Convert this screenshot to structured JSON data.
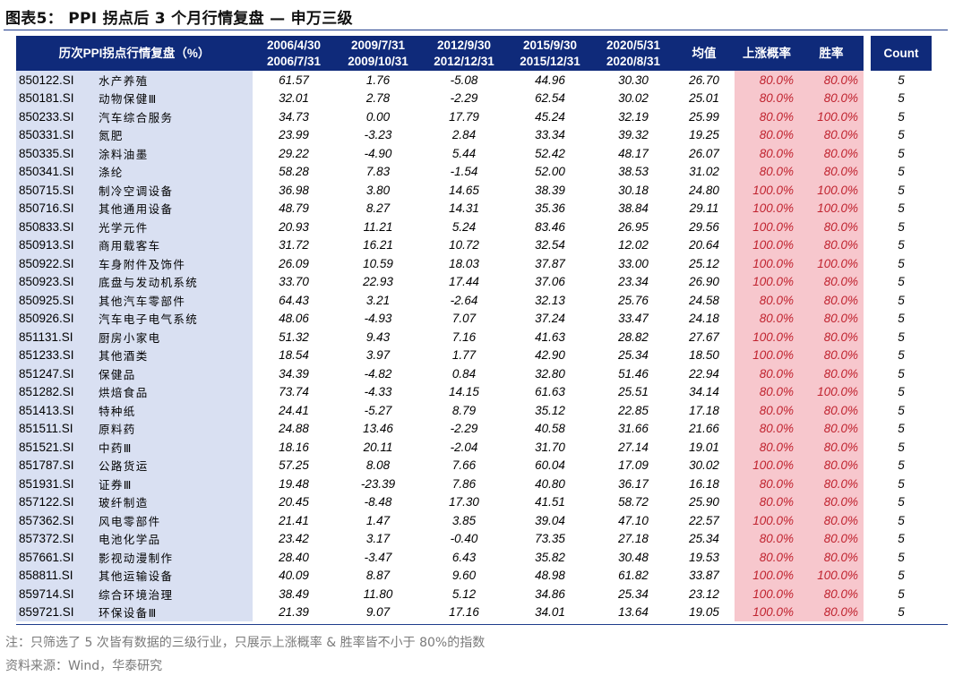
{
  "title": "图表5： PPI 拐点后 3 个月行情复盘 — 申万三级",
  "header": {
    "label": "历次PPI拐点行情复盘（%）",
    "periods": [
      [
        "2006/4/30",
        "2006/7/31"
      ],
      [
        "2009/7/31",
        "2009/10/31"
      ],
      [
        "2012/9/30",
        "2012/12/31"
      ],
      [
        "2015/9/30",
        "2015/12/31"
      ],
      [
        "2020/5/31",
        "2020/8/31"
      ]
    ],
    "avg": "均值",
    "up_prob": "上涨概率",
    "win_rate": "胜率",
    "count": "Count"
  },
  "rows": [
    {
      "code": "850122.SI",
      "name": "水产养殖",
      "v": [
        "61.57",
        "1.76",
        "-5.08",
        "44.96",
        "30.30"
      ],
      "avg": "26.70",
      "up": "80.0%",
      "win": "80.0%",
      "count": "5"
    },
    {
      "code": "850181.SI",
      "name": "动物保健Ⅲ",
      "v": [
        "32.01",
        "2.78",
        "-2.29",
        "62.54",
        "30.02"
      ],
      "avg": "25.01",
      "up": "80.0%",
      "win": "80.0%",
      "count": "5"
    },
    {
      "code": "850233.SI",
      "name": "汽车综合服务",
      "v": [
        "34.73",
        "0.00",
        "17.79",
        "45.24",
        "32.19"
      ],
      "avg": "25.99",
      "up": "80.0%",
      "win": "100.0%",
      "count": "5"
    },
    {
      "code": "850331.SI",
      "name": "氮肥",
      "v": [
        "23.99",
        "-3.23",
        "2.84",
        "33.34",
        "39.32"
      ],
      "avg": "19.25",
      "up": "80.0%",
      "win": "80.0%",
      "count": "5"
    },
    {
      "code": "850335.SI",
      "name": "涂料油墨",
      "v": [
        "29.22",
        "-4.90",
        "5.44",
        "52.42",
        "48.17"
      ],
      "avg": "26.07",
      "up": "80.0%",
      "win": "80.0%",
      "count": "5"
    },
    {
      "code": "850341.SI",
      "name": "涤纶",
      "v": [
        "58.28",
        "7.83",
        "-1.54",
        "52.00",
        "38.53"
      ],
      "avg": "31.02",
      "up": "80.0%",
      "win": "80.0%",
      "count": "5"
    },
    {
      "code": "850715.SI",
      "name": "制冷空调设备",
      "v": [
        "36.98",
        "3.80",
        "14.65",
        "38.39",
        "30.18"
      ],
      "avg": "24.80",
      "up": "100.0%",
      "win": "100.0%",
      "count": "5"
    },
    {
      "code": "850716.SI",
      "name": "其他通用设备",
      "v": [
        "48.79",
        "8.27",
        "14.31",
        "35.36",
        "38.84"
      ],
      "avg": "29.11",
      "up": "100.0%",
      "win": "100.0%",
      "count": "5"
    },
    {
      "code": "850833.SI",
      "name": "光学元件",
      "v": [
        "20.93",
        "11.21",
        "5.24",
        "83.46",
        "26.95"
      ],
      "avg": "29.56",
      "up": "100.0%",
      "win": "80.0%",
      "count": "5"
    },
    {
      "code": "850913.SI",
      "name": "商用载客车",
      "v": [
        "31.72",
        "16.21",
        "10.72",
        "32.54",
        "12.02"
      ],
      "avg": "20.64",
      "up": "100.0%",
      "win": "80.0%",
      "count": "5"
    },
    {
      "code": "850922.SI",
      "name": "车身附件及饰件",
      "v": [
        "26.09",
        "10.59",
        "18.03",
        "37.87",
        "33.00"
      ],
      "avg": "25.12",
      "up": "100.0%",
      "win": "100.0%",
      "count": "5"
    },
    {
      "code": "850923.SI",
      "name": "底盘与发动机系统",
      "v": [
        "33.70",
        "22.93",
        "17.44",
        "37.06",
        "23.34"
      ],
      "avg": "26.90",
      "up": "100.0%",
      "win": "80.0%",
      "count": "5"
    },
    {
      "code": "850925.SI",
      "name": "其他汽车零部件",
      "v": [
        "64.43",
        "3.21",
        "-2.64",
        "32.13",
        "25.76"
      ],
      "avg": "24.58",
      "up": "80.0%",
      "win": "80.0%",
      "count": "5"
    },
    {
      "code": "850926.SI",
      "name": "汽车电子电气系统",
      "v": [
        "48.06",
        "-4.93",
        "7.07",
        "37.24",
        "33.47"
      ],
      "avg": "24.18",
      "up": "80.0%",
      "win": "80.0%",
      "count": "5"
    },
    {
      "code": "851131.SI",
      "name": "厨房小家电",
      "v": [
        "51.32",
        "9.43",
        "7.16",
        "41.63",
        "28.82"
      ],
      "avg": "27.67",
      "up": "100.0%",
      "win": "80.0%",
      "count": "5"
    },
    {
      "code": "851233.SI",
      "name": "其他酒类",
      "v": [
        "18.54",
        "3.97",
        "1.77",
        "42.90",
        "25.34"
      ],
      "avg": "18.50",
      "up": "100.0%",
      "win": "80.0%",
      "count": "5"
    },
    {
      "code": "851247.SI",
      "name": "保健品",
      "v": [
        "34.39",
        "-4.82",
        "0.84",
        "32.80",
        "51.46"
      ],
      "avg": "22.94",
      "up": "80.0%",
      "win": "80.0%",
      "count": "5"
    },
    {
      "code": "851282.SI",
      "name": "烘焙食品",
      "v": [
        "73.74",
        "-4.33",
        "14.15",
        "61.63",
        "25.51"
      ],
      "avg": "34.14",
      "up": "80.0%",
      "win": "100.0%",
      "count": "5"
    },
    {
      "code": "851413.SI",
      "name": "特种纸",
      "v": [
        "24.41",
        "-5.27",
        "8.79",
        "35.12",
        "22.85"
      ],
      "avg": "17.18",
      "up": "80.0%",
      "win": "80.0%",
      "count": "5"
    },
    {
      "code": "851511.SI",
      "name": "原料药",
      "v": [
        "24.88",
        "13.46",
        "-2.29",
        "40.58",
        "31.66"
      ],
      "avg": "21.66",
      "up": "80.0%",
      "win": "80.0%",
      "count": "5"
    },
    {
      "code": "851521.SI",
      "name": "中药Ⅲ",
      "v": [
        "18.16",
        "20.11",
        "-2.04",
        "31.70",
        "27.14"
      ],
      "avg": "19.01",
      "up": "80.0%",
      "win": "80.0%",
      "count": "5"
    },
    {
      "code": "851787.SI",
      "name": "公路货运",
      "v": [
        "57.25",
        "8.08",
        "7.66",
        "60.04",
        "17.09"
      ],
      "avg": "30.02",
      "up": "100.0%",
      "win": "80.0%",
      "count": "5"
    },
    {
      "code": "851931.SI",
      "name": "证券Ⅲ",
      "v": [
        "19.48",
        "-23.39",
        "7.86",
        "40.80",
        "36.17"
      ],
      "avg": "16.18",
      "up": "80.0%",
      "win": "80.0%",
      "count": "5"
    },
    {
      "code": "857122.SI",
      "name": "玻纤制造",
      "v": [
        "20.45",
        "-8.48",
        "17.30",
        "41.51",
        "58.72"
      ],
      "avg": "25.90",
      "up": "80.0%",
      "win": "80.0%",
      "count": "5"
    },
    {
      "code": "857362.SI",
      "name": "风电零部件",
      "v": [
        "21.41",
        "1.47",
        "3.85",
        "39.04",
        "47.10"
      ],
      "avg": "22.57",
      "up": "100.0%",
      "win": "80.0%",
      "count": "5"
    },
    {
      "code": "857372.SI",
      "name": "电池化学品",
      "v": [
        "23.42",
        "3.17",
        "-0.40",
        "73.35",
        "27.18"
      ],
      "avg": "25.34",
      "up": "80.0%",
      "win": "80.0%",
      "count": "5"
    },
    {
      "code": "857661.SI",
      "name": "影视动漫制作",
      "v": [
        "28.40",
        "-3.47",
        "6.43",
        "35.82",
        "30.48"
      ],
      "avg": "19.53",
      "up": "80.0%",
      "win": "80.0%",
      "count": "5"
    },
    {
      "code": "858811.SI",
      "name": "其他运输设备",
      "v": [
        "40.09",
        "8.87",
        "9.60",
        "48.98",
        "61.82"
      ],
      "avg": "33.87",
      "up": "100.0%",
      "win": "100.0%",
      "count": "5"
    },
    {
      "code": "859714.SI",
      "name": "综合环境治理",
      "v": [
        "38.49",
        "11.80",
        "5.12",
        "34.86",
        "25.34"
      ],
      "avg": "23.12",
      "up": "100.0%",
      "win": "80.0%",
      "count": "5"
    },
    {
      "code": "859721.SI",
      "name": "环保设备Ⅲ",
      "v": [
        "21.39",
        "9.07",
        "17.16",
        "34.01",
        "13.64"
      ],
      "avg": "19.05",
      "up": "100.0%",
      "win": "80.0%",
      "count": "5"
    }
  ],
  "note": "注：只筛选了 5 次皆有数据的三级行业，只展示上涨概率 & 胜率皆不小于 80%的指数",
  "source": "资料来源：Wind，华泰研究",
  "colors": {
    "header_bg": "#0f2a7a",
    "name_bg": "#d9e0f2",
    "pink_bg": "#f7c7cd",
    "pink_text": "#c0232f"
  }
}
